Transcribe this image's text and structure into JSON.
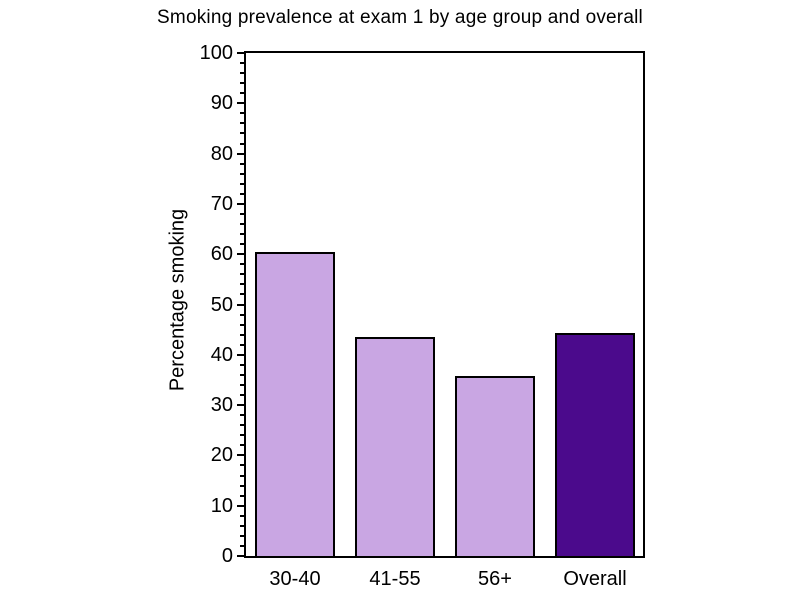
{
  "chart_data": {
    "type": "bar",
    "title": "Smoking prevalence at exam 1 by age group and overall",
    "xlabel": "",
    "ylabel": "Percentage smoking",
    "categories": [
      "30-40",
      "41-55",
      "56+",
      "Overall"
    ],
    "values": [
      60.4,
      43.6,
      35.8,
      44.3
    ],
    "ylim": [
      0,
      100
    ],
    "yticks": [
      0,
      10,
      20,
      30,
      40,
      50,
      60,
      70,
      80,
      90,
      100
    ],
    "ytick_major_step": 10,
    "ytick_minor_step": 2,
    "grid": false,
    "legend": "none",
    "plot_frame": true,
    "colors": {
      "bar_fills": [
        "#C9A6E3",
        "#C9A6E3",
        "#C9A6E3",
        "#4B0A8C"
      ],
      "bar_border": "#000000",
      "axis": "#000000",
      "background": "#FFFFFF"
    }
  }
}
